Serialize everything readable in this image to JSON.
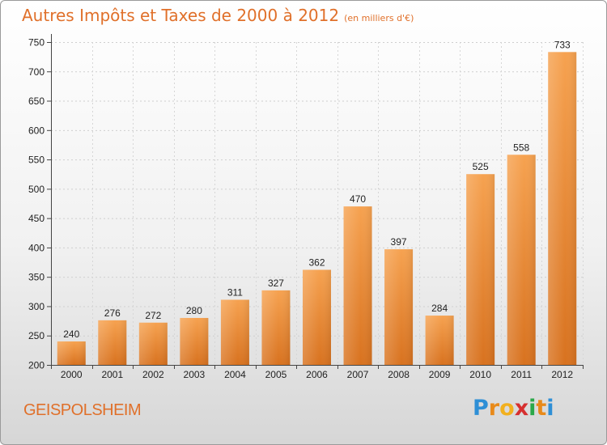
{
  "header": {
    "title": "Autres Impôts et Taxes de 2000 à 2012",
    "unit": "(en milliers d'€)"
  },
  "footer": {
    "commune": "GEISPOLSHEIM",
    "brand_letters": [
      {
        "ch": "P",
        "color": "#2e8fd6"
      },
      {
        "ch": "r",
        "color": "#e88a1a"
      },
      {
        "ch": "o",
        "color": "#f2b01e"
      },
      {
        "ch": "x",
        "color": "#d62f2f"
      },
      {
        "ch": "i",
        "color": "#2aa84a"
      },
      {
        "ch": "t",
        "color": "#e88a1a"
      },
      {
        "ch": "i",
        "color": "#2e8fd6"
      }
    ]
  },
  "chart_data": {
    "type": "bar",
    "categories": [
      "2000",
      "2001",
      "2002",
      "2003",
      "2004",
      "2005",
      "2006",
      "2007",
      "2008",
      "2009",
      "2010",
      "2011",
      "2012"
    ],
    "values": [
      240,
      276,
      272,
      280,
      311,
      327,
      362,
      470,
      397,
      284,
      525,
      558,
      733
    ],
    "ylim": [
      200,
      750
    ],
    "yticks": [
      200,
      250,
      300,
      350,
      400,
      450,
      500,
      550,
      600,
      650,
      700,
      750
    ],
    "grid": true,
    "bar_color_light": "#f6a14e",
    "bar_color_dark": "#d9741f"
  }
}
